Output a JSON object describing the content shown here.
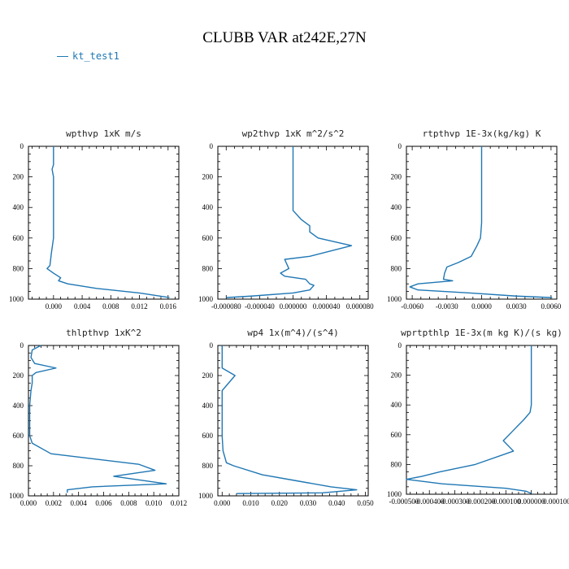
{
  "header": {
    "title": "CLUBB VAR at242E,27N",
    "legend_label": "kt_test1"
  },
  "colors": {
    "series": "#1f77b4",
    "axis": "#000000"
  },
  "chart_data": [
    {
      "type": "line",
      "title": "wpthvp   1xK m/s",
      "xlim": [
        -0.0035,
        0.0175
      ],
      "ylim": [
        1000,
        0
      ],
      "xticks": [
        0.0,
        0.004,
        0.008,
        0.012,
        0.016
      ],
      "xtick_labels": [
        "0.000",
        "0.004",
        "0.008",
        "0.012",
        "0.016"
      ],
      "yticks": [
        0,
        200,
        400,
        600,
        800,
        1000
      ],
      "ytick_labels": [
        "0",
        "200",
        "400",
        "600",
        "800",
        "1000"
      ],
      "series": [
        {
          "values": [
            [
              0.0,
              0
            ],
            [
              0.0,
              120
            ],
            [
              -0.0002,
              150
            ],
            [
              0.0,
              200
            ],
            [
              0.0,
              300
            ],
            [
              0.0,
              400
            ],
            [
              0.0,
              500
            ],
            [
              0.0,
              600
            ],
            [
              -0.0003,
              700
            ],
            [
              -0.0005,
              780
            ],
            [
              -0.0009,
              800
            ],
            [
              0.0,
              830
            ],
            [
              0.001,
              860
            ],
            [
              0.0007,
              880
            ],
            [
              0.002,
              900
            ],
            [
              0.006,
              930
            ],
            [
              0.012,
              960
            ],
            [
              0.0162,
              990
            ]
          ]
        }
      ]
    },
    {
      "type": "line",
      "title": "wp2thvp   1xK m^2/s^2",
      "xlim": [
        -9e-05,
        9e-05
      ],
      "ylim": [
        1000,
        0
      ],
      "xticks": [
        -8e-05,
        -4e-05,
        0.0,
        4e-05,
        8e-05
      ],
      "xtick_labels": [
        "-0.000080",
        "-0.000040",
        "0.000000",
        "0.000040",
        "0.000080"
      ],
      "yticks": [
        0,
        200,
        400,
        600,
        800,
        1000
      ],
      "ytick_labels": [
        "0",
        "200",
        "400",
        "600",
        "800",
        "1000"
      ],
      "series": [
        {
          "values": [
            [
              0.0,
              0
            ],
            [
              0.0,
              100
            ],
            [
              0.0,
              150
            ],
            [
              0.0,
              200
            ],
            [
              0.0,
              300
            ],
            [
              0.0,
              420
            ],
            [
              1e-05,
              480
            ],
            [
              2e-05,
              520
            ],
            [
              2e-05,
              560
            ],
            [
              3e-05,
              600
            ],
            [
              7e-05,
              650
            ],
            [
              2e-05,
              720
            ],
            [
              -1e-05,
              740
            ],
            [
              -5e-06,
              800
            ],
            [
              -1.5e-05,
              830
            ],
            [
              -1e-05,
              850
            ],
            [
              1.5e-05,
              870
            ],
            [
              2e-05,
              900
            ],
            [
              2.5e-05,
              910
            ],
            [
              2e-05,
              940
            ],
            [
              0.0,
              960
            ],
            [
              -5e-05,
              980
            ],
            [
              -8e-05,
              990
            ]
          ]
        }
      ]
    },
    {
      "type": "line",
      "title": "rtpthvp   1E-3x(kg/kg) K",
      "xlim": [
        -0.0065,
        0.0065
      ],
      "ylim": [
        1000,
        0
      ],
      "xticks": [
        -0.006,
        -0.003,
        0.0,
        0.003,
        0.006
      ],
      "xtick_labels": [
        "-0.0060",
        "-0.0030",
        "0.0000",
        "0.0030",
        "0.0060"
      ],
      "yticks": [
        0,
        200,
        400,
        600,
        800,
        1000
      ],
      "ytick_labels": [
        "0",
        "200",
        "400",
        "600",
        "800",
        "1000"
      ],
      "series": [
        {
          "values": [
            [
              0.0,
              0
            ],
            [
              0.0,
              100
            ],
            [
              0.0,
              200
            ],
            [
              0.0,
              300
            ],
            [
              0.0,
              400
            ],
            [
              0.0,
              500
            ],
            [
              -0.0001,
              600
            ],
            [
              -0.0004,
              650
            ],
            [
              -0.0009,
              720
            ],
            [
              -0.002,
              760
            ],
            [
              -0.003,
              790
            ],
            [
              -0.0032,
              830
            ],
            [
              -0.0033,
              870
            ],
            [
              -0.0025,
              880
            ],
            [
              -0.0055,
              900
            ],
            [
              -0.0062,
              920
            ],
            [
              -0.0055,
              940
            ],
            [
              -0.001,
              960
            ],
            [
              0.003,
              980
            ],
            [
              0.0061,
              990
            ]
          ]
        }
      ]
    },
    {
      "type": "line",
      "title": "thlpthvp   1xK^2",
      "xlim": [
        0.0,
        0.012
      ],
      "ylim": [
        1000,
        0
      ],
      "xticks": [
        0.0,
        0.002,
        0.004,
        0.006,
        0.008,
        0.01,
        0.012
      ],
      "xtick_labels": [
        "0.000",
        "0.002",
        "0.004",
        "0.006",
        "0.008",
        "0.010",
        "0.012"
      ],
      "yticks": [
        0,
        200,
        400,
        600,
        800,
        1000
      ],
      "ytick_labels": [
        "0",
        "200",
        "400",
        "600",
        "800",
        "1000"
      ],
      "series": [
        {
          "values": [
            [
              0.001,
              0
            ],
            [
              0.0003,
              30
            ],
            [
              0.0002,
              80
            ],
            [
              0.0005,
              120
            ],
            [
              0.0022,
              150
            ],
            [
              0.0006,
              180
            ],
            [
              0.0003,
              200
            ],
            [
              0.0003,
              250
            ],
            [
              0.0002,
              300
            ],
            [
              0.0001,
              400
            ],
            [
              0.0001,
              500
            ],
            [
              0.0001,
              600
            ],
            [
              0.0003,
              650
            ],
            [
              0.0018,
              720
            ],
            [
              0.0088,
              790
            ],
            [
              0.0101,
              830
            ],
            [
              0.0068,
              870
            ],
            [
              0.011,
              920
            ],
            [
              0.0051,
              940
            ],
            [
              0.0031,
              960
            ],
            [
              0.0031,
              980
            ]
          ]
        }
      ]
    },
    {
      "type": "line",
      "title": "wp4   1x(m^4)/(s^4)",
      "xlim": [
        -0.0015,
        0.051
      ],
      "ylim": [
        1000,
        0
      ],
      "xticks": [
        0.0,
        0.01,
        0.02,
        0.03,
        0.04,
        0.05
      ],
      "xtick_labels": [
        "0.000",
        "0.010",
        "0.020",
        "0.030",
        "0.040",
        "0.050"
      ],
      "yticks": [
        0,
        200,
        400,
        600,
        800,
        1000
      ],
      "ytick_labels": [
        "0",
        "200",
        "400",
        "600",
        "800",
        "1000"
      ],
      "series": [
        {
          "values": [
            [
              0.0,
              0
            ],
            [
              0.0,
              150
            ],
            [
              0.0045,
              200
            ],
            [
              0.0,
              300
            ],
            [
              0.0,
              400
            ],
            [
              0.0,
              500
            ],
            [
              0.0,
              600
            ],
            [
              0.0003,
              700
            ],
            [
              0.0015,
              780
            ],
            [
              0.004,
              800
            ],
            [
              0.014,
              860
            ],
            [
              0.026,
              900
            ],
            [
              0.038,
              940
            ],
            [
              0.047,
              960
            ],
            [
              0.035,
              980
            ],
            [
              0.005,
              985
            ]
          ]
        }
      ]
    },
    {
      "type": "line",
      "title": "wprtpthlp   1E-3x(m kg K)/(s kg)",
      "xlim": [
        -0.00049,
        0.0001
      ],
      "ylim": [
        1000,
        0
      ],
      "xticks": [
        -0.0005,
        -0.0004,
        -0.0003,
        -0.0002,
        -0.0001,
        0.0,
        0.0001
      ],
      "xtick_labels": [
        "-0.000500",
        "-0.000400",
        "-0.000300",
        "-0.000200",
        "-0.000100",
        "0.000000",
        "0.000100"
      ],
      "yticks": [
        0,
        200,
        400,
        600,
        800,
        1000
      ],
      "ytick_labels": [
        "0",
        "200",
        "400",
        "600",
        "800",
        "1000"
      ],
      "series": [
        {
          "values": [
            [
              0.0,
              0
            ],
            [
              0.0,
              100
            ],
            [
              0.0,
              200
            ],
            [
              0.0,
              300
            ],
            [
              0.0,
              400
            ],
            [
              -5e-06,
              450
            ],
            [
              -3e-05,
              500
            ],
            [
              -7e-05,
              570
            ],
            [
              -0.00011,
              640
            ],
            [
              -7e-05,
              710
            ],
            [
              -0.00022,
              800
            ],
            [
              -0.00036,
              850
            ],
            [
              -0.00043,
              880
            ],
            [
              -0.00049,
              900
            ],
            [
              -0.00035,
              930
            ],
            [
              -0.0001,
              960
            ],
            [
              -2e-05,
              980
            ],
            [
              0.0,
              995
            ]
          ]
        }
      ]
    }
  ]
}
